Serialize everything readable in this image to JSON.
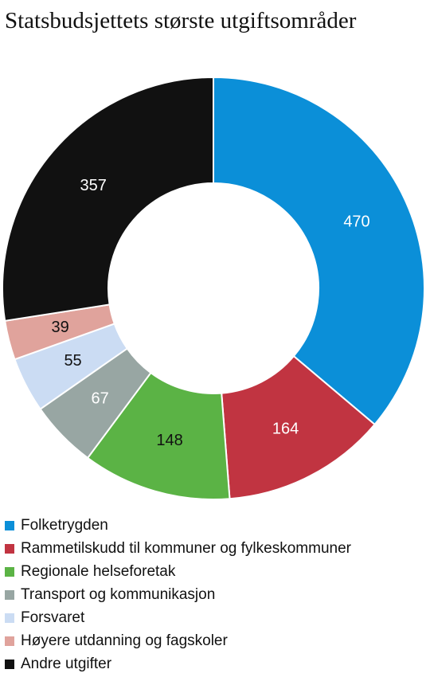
{
  "title": "Statsbudsjettets største utgiftsområder",
  "chart_data": {
    "type": "pie",
    "donut": true,
    "title": "Statsbudsjettets største utgiftsområder",
    "slices": [
      {
        "label": "Folketrygden",
        "value": 470,
        "color": "#0B8FD8",
        "label_color": "#ffffff"
      },
      {
        "label": "Rammetilskudd til kommuner og fylkeskommuner",
        "value": 164,
        "color": "#C13441",
        "label_color": "#ffffff"
      },
      {
        "label": "Regionale helseforetak",
        "value": 148,
        "color": "#5BB345",
        "label_color": "#111111"
      },
      {
        "label": "Transport og kommunikasjon",
        "value": 67,
        "color": "#98A6A3",
        "label_color": "#ffffff"
      },
      {
        "label": "Forsvaret",
        "value": 55,
        "color": "#CBDCF3",
        "label_color": "#111111"
      },
      {
        "label": "Høyere utdanning og fagskoler",
        "value": 39,
        "color": "#E0A39C",
        "label_color": "#111111"
      },
      {
        "label": "Andre utgifter",
        "value": 357,
        "color": "#111111",
        "label_color": "#ffffff"
      }
    ],
    "legend_position": "bottom"
  }
}
